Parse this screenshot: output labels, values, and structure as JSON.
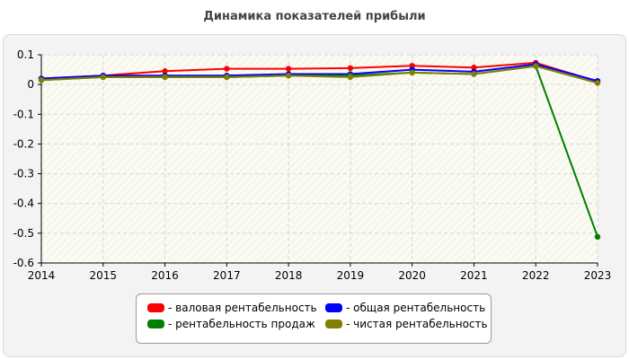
{
  "chart_data": {
    "type": "line",
    "title": "Динамика показателей прибыли",
    "xlabel": "",
    "ylabel": "",
    "categories": [
      "2014",
      "2015",
      "2016",
      "2017",
      "2018",
      "2019",
      "2020",
      "2021",
      "2022",
      "2023"
    ],
    "ylim": [
      -0.6,
      0.1
    ],
    "yticks": [
      0.1,
      0,
      -0.1,
      -0.2,
      -0.3,
      -0.4,
      -0.5,
      -0.6
    ],
    "ytick_labels": [
      "0.1",
      "0",
      "-0.1",
      "-0.2",
      "-0.3",
      "-0.4",
      "-0.5",
      "-0.6"
    ],
    "grid": true,
    "legend_position": "bottom",
    "series": [
      {
        "name": "- валовая рентабельность",
        "color": "#ff0000",
        "values": [
          0.02,
          0.03,
          0.045,
          0.053,
          0.053,
          0.055,
          0.063,
          0.057,
          0.073,
          0.01
        ]
      },
      {
        "name": "- общая рентабельность",
        "color": "#0000ff",
        "values": [
          0.02,
          0.03,
          0.03,
          0.03,
          0.035,
          0.035,
          0.05,
          0.043,
          0.068,
          0.012
        ]
      },
      {
        "name": "- рентабельность продаж",
        "color": "#008000",
        "values": [
          0.015,
          0.025,
          0.025,
          0.025,
          0.03,
          0.03,
          0.04,
          0.035,
          0.062,
          -0.512
        ]
      },
      {
        "name": "- чистая рентабельность",
        "color": "#808000",
        "values": [
          0.015,
          0.025,
          0.025,
          0.025,
          0.03,
          0.025,
          0.04,
          0.035,
          0.062,
          0.005
        ]
      }
    ]
  }
}
